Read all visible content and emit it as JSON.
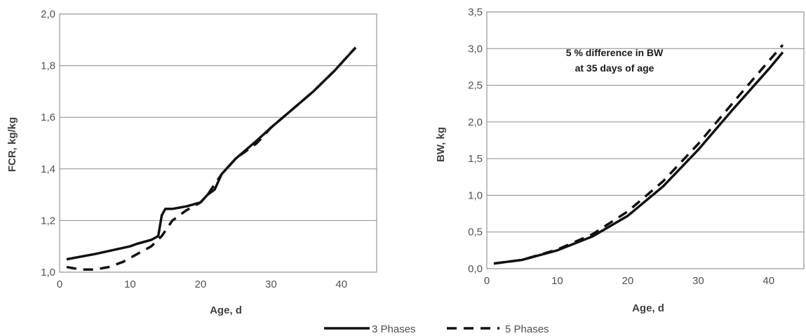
{
  "legend": {
    "items": [
      {
        "label": "3 Phases",
        "style": "solid"
      },
      {
        "label": "5 Phases",
        "style": "dashed"
      }
    ]
  },
  "chart_data": [
    {
      "type": "line",
      "title": "",
      "xlabel": "Age, d",
      "ylabel": "FCR, kg/kg",
      "xlim": [
        0,
        45
      ],
      "ylim": [
        1.0,
        2.0
      ],
      "xticks": [
        0,
        10,
        20,
        30,
        40
      ],
      "yticks": [
        1.0,
        1.2,
        1.4,
        1.6,
        1.8,
        2.0
      ],
      "xtick_labels": [
        "0",
        "10",
        "20",
        "30",
        "40"
      ],
      "ytick_labels": [
        "1,0",
        "1,2",
        "1,4",
        "1,6",
        "1,8",
        "2,0"
      ],
      "grid": "horizontal",
      "series": [
        {
          "name": "3 Phases",
          "style": "solid",
          "color": "#111111",
          "x": [
            1,
            5,
            10,
            11,
            13,
            14,
            14.5,
            15,
            16,
            18,
            20,
            21,
            22,
            23,
            25,
            28,
            30,
            33,
            36,
            39,
            42
          ],
          "y": [
            1.05,
            1.07,
            1.1,
            1.11,
            1.125,
            1.14,
            1.22,
            1.245,
            1.245,
            1.255,
            1.27,
            1.3,
            1.32,
            1.38,
            1.44,
            1.51,
            1.56,
            1.63,
            1.7,
            1.78,
            1.87
          ]
        },
        {
          "name": "5 Phases",
          "style": "dashed",
          "color": "#111111",
          "x": [
            1,
            2,
            3,
            5,
            7,
            9,
            11,
            13,
            14.5,
            16,
            18,
            20,
            21,
            22,
            23,
            25,
            28,
            30,
            33,
            36,
            39,
            42
          ],
          "y": [
            1.02,
            1.015,
            1.01,
            1.01,
            1.02,
            1.04,
            1.07,
            1.1,
            1.14,
            1.2,
            1.24,
            1.27,
            1.3,
            1.34,
            1.38,
            1.44,
            1.5,
            1.56,
            1.63,
            1.7,
            1.78,
            1.87
          ]
        }
      ]
    },
    {
      "type": "line",
      "title": "",
      "xlabel": "Age, d",
      "ylabel": "BW, kg",
      "xlim": [
        0,
        45
      ],
      "ylim": [
        0,
        3.5
      ],
      "xticks": [
        0,
        10,
        20,
        30,
        40
      ],
      "yticks": [
        0,
        0.5,
        1.0,
        1.5,
        2.0,
        2.5,
        3.0,
        3.5
      ],
      "xtick_labels": [
        "0",
        "10",
        "20",
        "30",
        "40"
      ],
      "ytick_labels": [
        "0,0",
        "0,5",
        "1,0",
        "1,5",
        "2,0",
        "2,5",
        "3,0",
        "3,5"
      ],
      "grid": "horizontal",
      "annotations": [
        "5 % difference in BW",
        "at 35 days of age"
      ],
      "series": [
        {
          "name": "3 Phases",
          "style": "solid",
          "color": "#111111",
          "x": [
            1,
            5,
            10,
            15,
            20,
            25,
            30,
            35,
            40,
            42
          ],
          "y": [
            0.07,
            0.12,
            0.25,
            0.44,
            0.72,
            1.12,
            1.62,
            2.18,
            2.72,
            2.95
          ]
        },
        {
          "name": "5 Phases",
          "style": "dashed",
          "color": "#111111",
          "x": [
            1,
            5,
            10,
            15,
            20,
            25,
            30,
            35,
            40,
            42
          ],
          "y": [
            0.07,
            0.12,
            0.26,
            0.47,
            0.78,
            1.19,
            1.7,
            2.27,
            2.83,
            3.05
          ]
        }
      ]
    }
  ]
}
